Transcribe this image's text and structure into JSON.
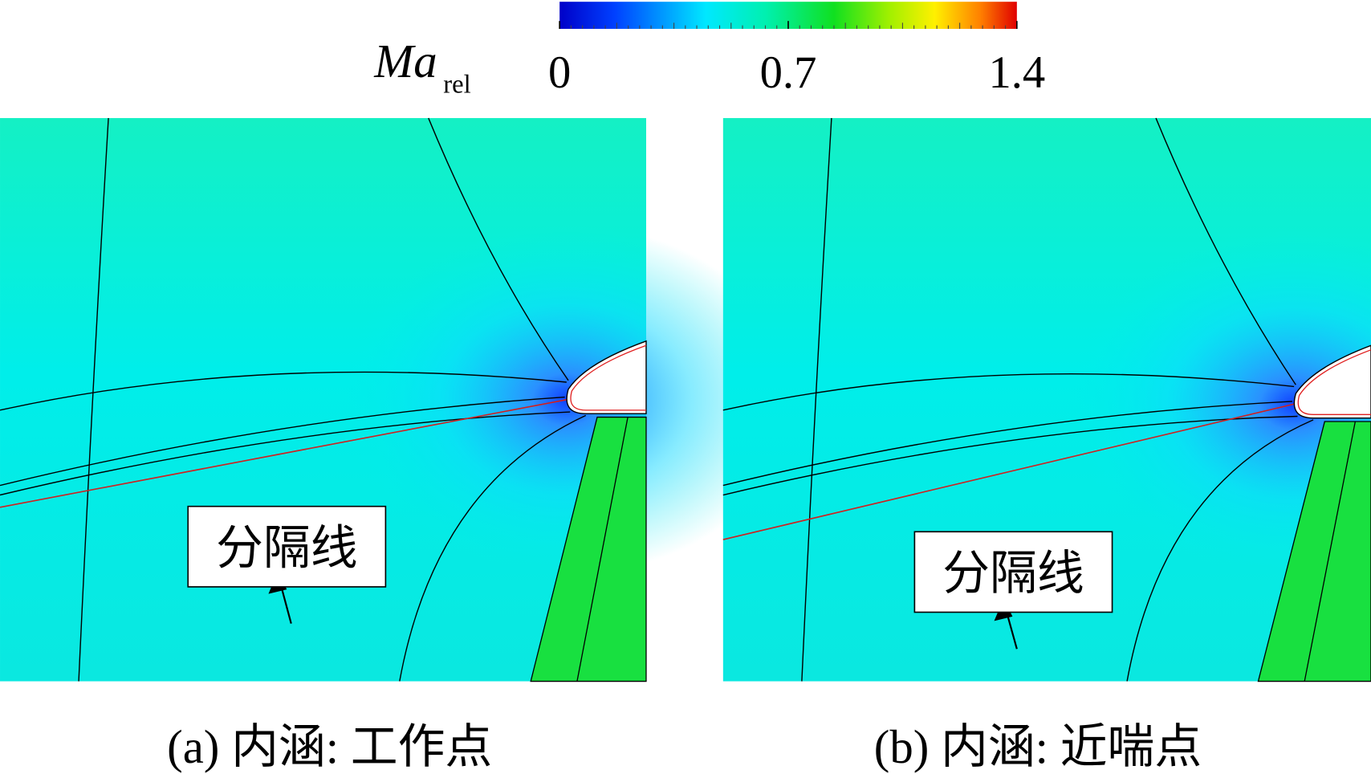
{
  "colorbar": {
    "label": "Ma",
    "label_subscript": "rel",
    "range": [
      0,
      1.4
    ],
    "ticks": [
      0,
      0.7,
      1.4
    ]
  },
  "panels": [
    {
      "caption": "(a) 内涵: 工作点",
      "annotation": "分隔线"
    },
    {
      "caption": "(b) 内涵: 近喘点",
      "annotation": "分隔线"
    }
  ]
}
